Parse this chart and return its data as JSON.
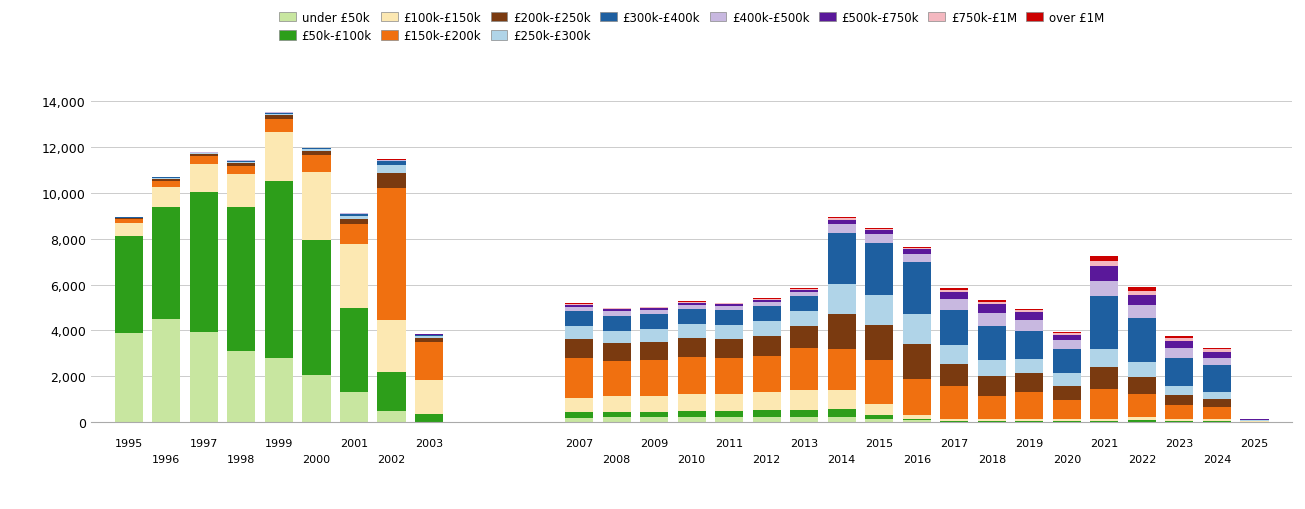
{
  "categories": [
    1995,
    1996,
    1997,
    1998,
    1999,
    2000,
    2001,
    2002,
    2003,
    2007,
    2008,
    2009,
    2010,
    2011,
    2012,
    2013,
    2014,
    2015,
    2016,
    2017,
    2018,
    2019,
    2020,
    2021,
    2022,
    2023,
    2024,
    2025
  ],
  "series": {
    "under £50k": [
      3900,
      4500,
      3950,
      3100,
      2800,
      2050,
      1300,
      500,
      30,
      200,
      220,
      220,
      230,
      230,
      230,
      230,
      230,
      130,
      80,
      30,
      30,
      30,
      30,
      30,
      30,
      30,
      30,
      15
    ],
    "£50k-£100k": [
      4200,
      4900,
      6100,
      6300,
      7700,
      5900,
      3700,
      1700,
      330,
      250,
      230,
      230,
      250,
      280,
      300,
      320,
      330,
      180,
      80,
      40,
      40,
      40,
      40,
      40,
      80,
      40,
      40,
      15
    ],
    "£100k-£150k": [
      600,
      850,
      1200,
      1400,
      2150,
      2950,
      2750,
      2250,
      1500,
      600,
      700,
      700,
      750,
      720,
      800,
      850,
      850,
      500,
      160,
      80,
      80,
      80,
      80,
      80,
      120,
      80,
      80,
      8
    ],
    "£150k-£200k": [
      150,
      280,
      350,
      350,
      550,
      750,
      900,
      5750,
      1650,
      1750,
      1500,
      1550,
      1600,
      1550,
      1550,
      1850,
      1800,
      1900,
      1550,
      1450,
      1000,
      1150,
      800,
      1300,
      1000,
      600,
      500,
      15
    ],
    "£200k-£250k": [
      40,
      80,
      90,
      130,
      170,
      170,
      220,
      650,
      180,
      850,
      800,
      800,
      850,
      850,
      900,
      950,
      1500,
      1550,
      1550,
      950,
      850,
      850,
      650,
      950,
      750,
      450,
      370,
      15
    ],
    "£250k-£300k": [
      25,
      40,
      40,
      80,
      80,
      80,
      130,
      350,
      80,
      550,
      550,
      550,
      600,
      600,
      650,
      650,
      1300,
      1300,
      1300,
      800,
      700,
      600,
      550,
      800,
      650,
      370,
      320,
      15
    ],
    "£300k-£400k": [
      15,
      25,
      25,
      40,
      40,
      40,
      80,
      170,
      40,
      650,
      650,
      650,
      650,
      650,
      650,
      650,
      2250,
      2250,
      2250,
      1550,
      1500,
      1250,
      1050,
      2300,
      1900,
      1250,
      1150,
      25
    ],
    "£400k-£500k": [
      8,
      8,
      8,
      15,
      15,
      15,
      25,
      40,
      15,
      180,
      180,
      180,
      180,
      180,
      180,
      180,
      380,
      380,
      380,
      470,
      570,
      470,
      380,
      660,
      560,
      420,
      320,
      8
    ],
    "£500k-£750k": [
      4,
      4,
      4,
      8,
      8,
      8,
      15,
      25,
      8,
      90,
      90,
      90,
      90,
      90,
      90,
      90,
      180,
      180,
      180,
      320,
      370,
      320,
      230,
      660,
      470,
      320,
      260,
      8
    ],
    "£750k-£1M": [
      2,
      2,
      2,
      4,
      4,
      4,
      8,
      12,
      4,
      42,
      42,
      42,
      42,
      42,
      42,
      42,
      70,
      70,
      70,
      90,
      120,
      90,
      70,
      230,
      180,
      130,
      110,
      4
    ],
    "over £1M": [
      1,
      1,
      1,
      2,
      2,
      2,
      4,
      7,
      2,
      22,
      22,
      22,
      22,
      22,
      22,
      22,
      42,
      42,
      42,
      62,
      72,
      52,
      42,
      185,
      135,
      90,
      72,
      2
    ]
  },
  "colors": {
    "under £50k": "#c8e6a0",
    "£50k-£100k": "#2d9e1a",
    "£100k-£150k": "#fce8b2",
    "£150k-£200k": "#f07010",
    "£200k-£250k": "#7a3a10",
    "£250k-£300k": "#b0d4e8",
    "£300k-£400k": "#1e5fa0",
    "£400k-£500k": "#c8b8e0",
    "£500k-£750k": "#5a189a",
    "£750k-£1M": "#f4b8c0",
    "over £1M": "#cc0000"
  },
  "ylim": [
    0,
    14000
  ],
  "yticks": [
    0,
    2000,
    4000,
    6000,
    8000,
    10000,
    12000,
    14000
  ],
  "figsize": [
    13.05,
    5.1
  ],
  "dpi": 100
}
